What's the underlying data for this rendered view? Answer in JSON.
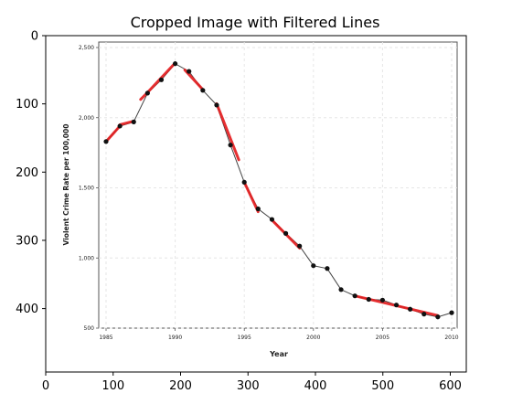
{
  "title": "Cropped Image with Filtered Lines",
  "outer_axes": {
    "x_ticks": [
      "0",
      "100",
      "200",
      "300",
      "400",
      "500",
      "600"
    ],
    "y_ticks": [
      "0",
      "100",
      "200",
      "300",
      "400"
    ]
  },
  "colors": {
    "series_line": "#444444",
    "marker": "#111111",
    "filtered_line": "#e41a1c",
    "grid": "#e6e6e6"
  },
  "chart_data": {
    "type": "line",
    "title": "",
    "xlabel": "Year",
    "ylabel": "Violent Crime Rate per 100,000",
    "x_tick_labels": [
      "1985",
      "1990",
      "1995",
      "2000",
      "2005",
      "2010"
    ],
    "y_tick_labels": [
      "500",
      "1,000",
      "1,500",
      "2,000",
      "2,500"
    ],
    "xlim": [
      1985,
      2010
    ],
    "ylim": [
      500,
      2550
    ],
    "grid": true,
    "series": [
      {
        "x": [
          1985,
          1986,
          1987,
          1988,
          1989,
          1990,
          1991,
          1992,
          1993,
          1994,
          1995,
          1996,
          1997,
          1998,
          1999,
          2000,
          2001,
          2002,
          2003,
          2004,
          2005,
          2006,
          2007,
          2008,
          2009,
          2010
        ],
        "values": [
          1830,
          1940,
          1970,
          2175,
          2270,
          2385,
          2330,
          2195,
          2090,
          1805,
          1540,
          1350,
          1275,
          1175,
          1085,
          945,
          925,
          775,
          730,
          705,
          700,
          665,
          635,
          600,
          580,
          610
        ]
      }
    ],
    "filtered_segments": [
      [
        [
          1985,
          1830
        ],
        [
          1986,
          1940
        ]
      ],
      [
        [
          1986,
          1950
        ],
        [
          1987,
          1975
        ]
      ],
      [
        [
          1987.5,
          2130
        ],
        [
          1988,
          2180
        ]
      ],
      [
        [
          1988,
          2180
        ],
        [
          1990,
          2390
        ]
      ],
      [
        [
          1990.7,
          2340
        ],
        [
          1992,
          2200
        ]
      ],
      [
        [
          1993,
          2100
        ],
        [
          1994.6,
          1700
        ]
      ],
      [
        [
          1995,
          1540
        ],
        [
          1996,
          1330
        ]
      ],
      [
        [
          1997,
          1270
        ],
        [
          1999,
          1070
        ]
      ],
      [
        [
          2003,
          730
        ],
        [
          2009,
          590
        ]
      ]
    ]
  }
}
